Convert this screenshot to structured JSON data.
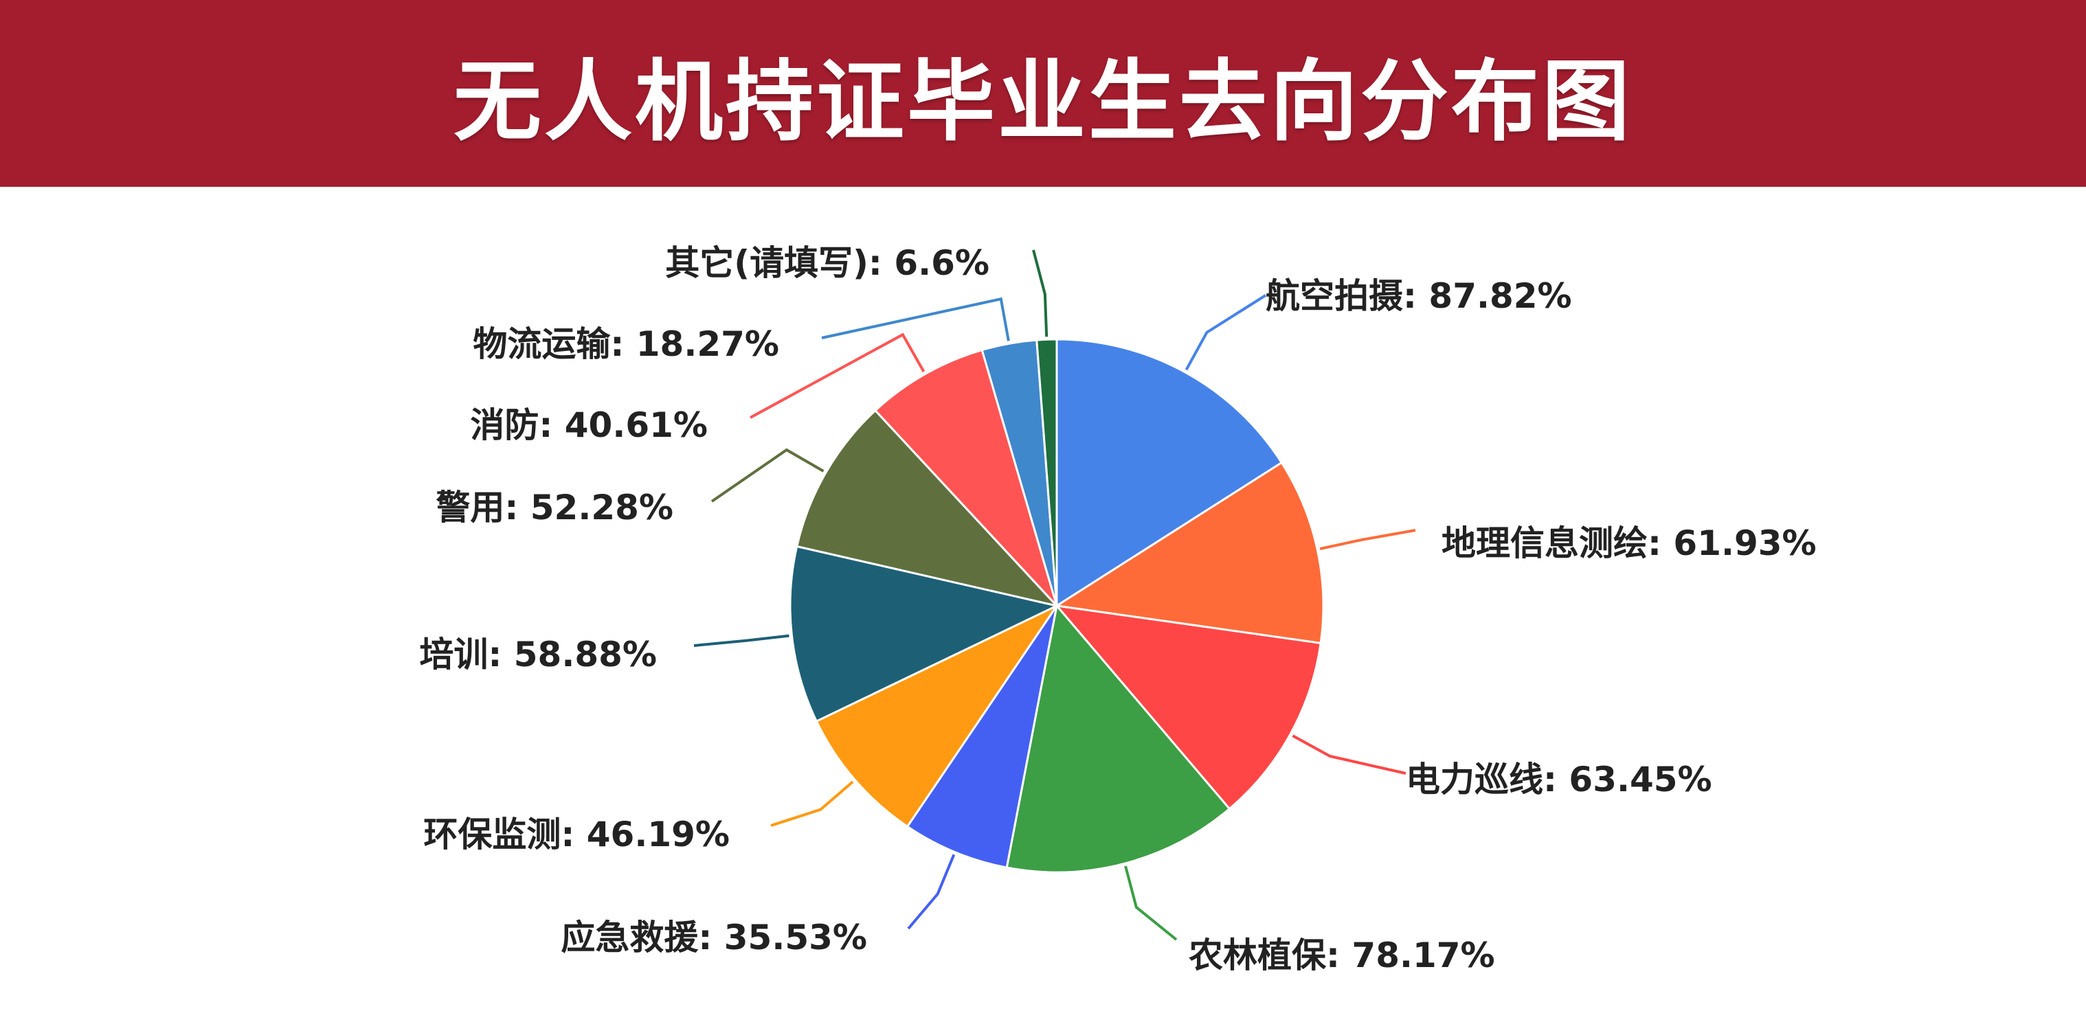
{
  "chart_data": {
    "type": "pie",
    "title": "无人机持证毕业生去向分布图",
    "unit": "%",
    "slices": [
      {
        "label": "航空拍摄",
        "value": 87.82,
        "color": "#4683e8"
      },
      {
        "label": "地理信息测绘",
        "value": 61.93,
        "color": "#ff6b38"
      },
      {
        "label": "电力巡线",
        "value": 63.45,
        "color": "#ff4646"
      },
      {
        "label": "农林植保",
        "value": 78.17,
        "color": "#3c9e45"
      },
      {
        "label": "应急救援",
        "value": 35.53,
        "color": "#4460f2"
      },
      {
        "label": "环保监测",
        "value": 46.19,
        "color": "#ff9a12"
      },
      {
        "label": "培训",
        "value": 58.88,
        "color": "#1d6076"
      },
      {
        "label": "警用",
        "value": 52.28,
        "color": "#5f703e"
      },
      {
        "label": "消防",
        "value": 40.61,
        "color": "#ff5454"
      },
      {
        "label": "物流运输",
        "value": 18.27,
        "color": "#3f88cc"
      },
      {
        "label": "其它(请填写)",
        "value": 6.6,
        "color": "#1e6e3e"
      }
    ],
    "label_format": "{label}: {value}%",
    "legend": "none"
  }
}
